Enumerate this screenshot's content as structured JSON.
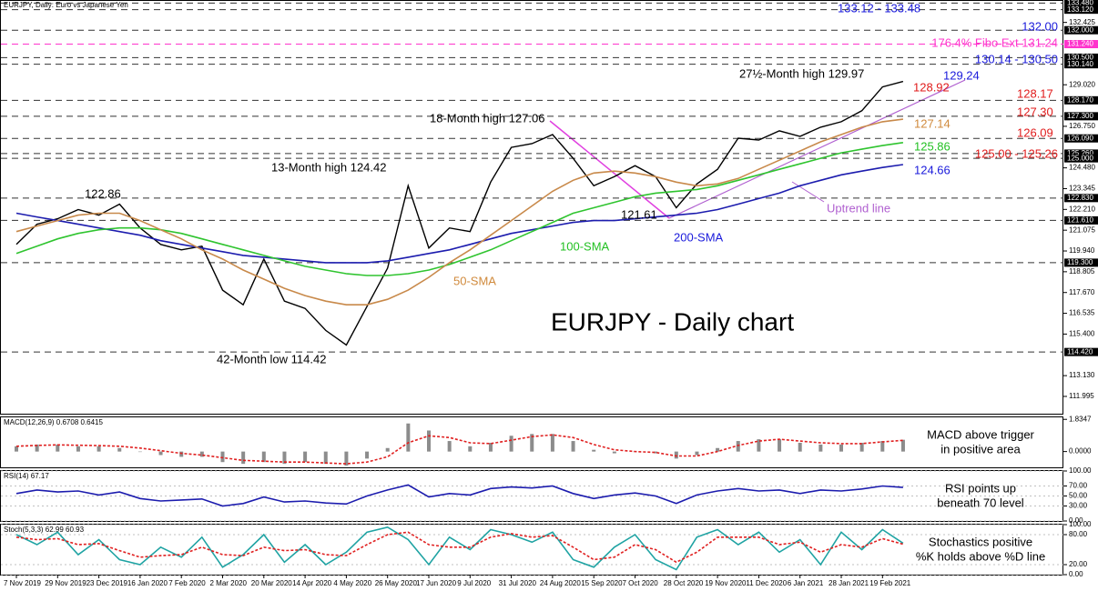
{
  "chart_data": [
    {
      "type": "line",
      "title": "EURJPY, Daily: Euro vs Japanese Yen",
      "categories": [
        "7 Nov 2019",
        null,
        "29 Nov 2019",
        null,
        "23 Dec 2019",
        null,
        "16 Jan 2020",
        null,
        "7 Feb 2020",
        null,
        "2 Mar 2020",
        null,
        "20 Mar 2020",
        null,
        "14 Apr 2020",
        null,
        "4 May 2020",
        null,
        "26 May 2020",
        null,
        "17 Jun 2020",
        null,
        "9 Jul 2020",
        null,
        "31 Jul 2020",
        null,
        "24 Aug 2020",
        null,
        "15 Sep 2020",
        null,
        "7 Oct 2020",
        null,
        "28 Oct 2020",
        null,
        "19 Nov 2020",
        null,
        "11 Dec 2020",
        null,
        "6 Jan 2021",
        null,
        "28 Jan 2021",
        null,
        "19 Feb 2021",
        null
      ],
      "series": [
        {
          "color": "#000000",
          "values": [
            120.3,
            121.4,
            121.7,
            122.2,
            121.9,
            122.5,
            121.2,
            120.3,
            120.0,
            120.2,
            117.8,
            117.0,
            119.5,
            117.2,
            116.8,
            115.6,
            114.8,
            116.9,
            119.0,
            123.5,
            120.1,
            121.2,
            121.0,
            123.7,
            125.6,
            125.8,
            126.3,
            125.0,
            123.5,
            124.0,
            124.6,
            124.0,
            122.3,
            123.6,
            124.4,
            126.1,
            126.0,
            126.5,
            126.2,
            126.7,
            127.0,
            127.6,
            128.9,
            129.2
          ]
        },
        {
          "color": "#1c1cae",
          "values": [
            122.0,
            121.8,
            121.6,
            121.4,
            121.2,
            121.0,
            120.8,
            120.5,
            120.3,
            120.1,
            119.9,
            119.7,
            119.6,
            119.5,
            119.4,
            119.3,
            119.3,
            119.3,
            119.4,
            119.6,
            119.8,
            120.0,
            120.3,
            120.6,
            120.9,
            121.1,
            121.3,
            121.5,
            121.6,
            121.6,
            121.7,
            121.8,
            121.9,
            122.0,
            122.2,
            122.5,
            122.8,
            123.1,
            123.5,
            123.8,
            124.1,
            124.3,
            124.5,
            124.66
          ]
        },
        {
          "color": "#2fc42f",
          "values": [
            119.8,
            120.2,
            120.6,
            120.9,
            121.1,
            121.2,
            121.2,
            121.1,
            120.9,
            120.6,
            120.3,
            120.0,
            119.7,
            119.4,
            119.1,
            118.9,
            118.7,
            118.6,
            118.6,
            118.7,
            118.9,
            119.2,
            119.6,
            120.0,
            120.5,
            121.0,
            121.5,
            122.0,
            122.3,
            122.6,
            122.9,
            123.1,
            123.2,
            123.3,
            123.5,
            123.8,
            124.1,
            124.4,
            124.7,
            125.0,
            125.3,
            125.5,
            125.7,
            125.86
          ]
        },
        {
          "color": "#c8894a",
          "values": [
            121.0,
            121.3,
            121.6,
            121.9,
            122.0,
            122.0,
            121.6,
            121.1,
            120.6,
            120.0,
            119.5,
            118.9,
            118.4,
            117.9,
            117.5,
            117.2,
            117.0,
            117.0,
            117.3,
            117.8,
            118.5,
            119.3,
            120.0,
            120.8,
            121.6,
            122.4,
            123.2,
            123.8,
            124.2,
            124.3,
            124.2,
            124.0,
            123.7,
            123.5,
            123.6,
            123.9,
            124.4,
            124.9,
            125.4,
            125.9,
            126.3,
            126.7,
            127.0,
            127.14
          ]
        }
      ],
      "ylim": [
        111.05,
        133.65
      ],
      "yticks": [
        111.995,
        {
          "value": 113.13,
          "label": "113.130"
        },
        {
          "value": 115.4,
          "label": "115.400"
        },
        116.535,
        {
          "value": 117.67,
          "label": "117.670"
        },
        118.805,
        {
          "value": 119.94,
          "label": "119.940"
        },
        121.075,
        {
          "value": 122.21,
          "label": "122.210"
        },
        123.345,
        {
          "value": 124.48,
          "label": "124.480"
        },
        {
          "value": 126.75,
          "label": "126.750"
        },
        {
          "value": 129.02,
          "label": "129.020"
        },
        132.425
      ],
      "levels": [
        {
          "value": 133.48,
          "label": "133.480",
          "color": "#000000"
        },
        {
          "value": 133.12,
          "label": "133.120",
          "color": "#000000"
        },
        {
          "value": 132,
          "label": "132.000",
          "color": "#000000"
        },
        {
          "value": 131.24,
          "label": "131.240",
          "color": "#ff33cc"
        },
        {
          "value": 130.5,
          "label": "130.500",
          "color": "#000000"
        },
        {
          "value": 130.14,
          "label": "130.140",
          "color": "#000000"
        },
        {
          "value": 128.17,
          "label": "128.170",
          "color": "#000000"
        },
        {
          "value": 127.3,
          "label": "127.300",
          "color": "#000000"
        },
        {
          "value": 126.09,
          "label": "126.090",
          "color": "#000000"
        },
        {
          "value": 125.26,
          "label": "125.260",
          "color": "#000000"
        },
        {
          "value": 125,
          "label": "125.000",
          "color": "#000000"
        },
        {
          "value": 122.83,
          "label": "122.830",
          "color": "#000000"
        },
        {
          "value": 121.61,
          "label": "121.610",
          "color": "#000000"
        },
        {
          "value": 119.3,
          "label": "119.300",
          "color": "#000000"
        },
        {
          "value": 114.42,
          "label": "114.420",
          "color": "#000000"
        }
      ],
      "annotations": [
        {
          "text": "133.12 - 133.48",
          "color": "#1a1adb"
        },
        {
          "text": "132.00",
          "color": "#1a1adb"
        },
        {
          "text": "176.4% Fibo Ext 131.24",
          "color": "#ff33cc"
        },
        {
          "text": "130.14 - 130.50",
          "color": "#1a1adb"
        },
        {
          "text": "27½-Month high 129.97",
          "color": "#000000"
        },
        {
          "text": "129.24",
          "color": "#1a1adb"
        },
        {
          "text": "128.92",
          "color": "#e01b1b"
        },
        {
          "text": "128.17",
          "color": "#e01b1b"
        },
        {
          "text": "127.30",
          "color": "#e01b1b"
        },
        {
          "text": "127.14",
          "color": "#d08a3c"
        },
        {
          "text": "126.09",
          "color": "#e01b1b"
        },
        {
          "text": "125.86",
          "color": "#22c022"
        },
        {
          "text": "125.00 - 125.26",
          "color": "#e01b1b"
        },
        {
          "text": "124.66",
          "color": "#1a1adb"
        },
        {
          "text": "18-Month high 127.06",
          "color": "#000000"
        },
        {
          "text": "13-Month high 124.42",
          "color": "#000000"
        },
        {
          "text": "122.86",
          "color": "#000000"
        },
        {
          "text": "121.61",
          "color": "#000000"
        },
        {
          "text": "Uptrend line",
          "color": "#b060d0"
        },
        {
          "text": "200-SMA",
          "color": "#1a1adb"
        },
        {
          "text": "100-SMA",
          "color": "#22c022"
        },
        {
          "text": "50-SMA",
          "color": "#d08a3c"
        },
        {
          "text": "42-Month low 114.42",
          "color": "#000000"
        }
      ],
      "headline": "EURJPY - Daily chart"
    },
    {
      "type": "bar",
      "title": "MACD(12,26,9) 0.6708 0.6415",
      "series": [
        {
          "mark": "bar",
          "color": "#8c8c8c",
          "values": [
            0.3,
            0.4,
            0.4,
            0.3,
            0.3,
            0.2,
            0.0,
            -0.2,
            -0.3,
            -0.3,
            -0.6,
            -0.7,
            -0.6,
            -0.7,
            -0.6,
            -0.7,
            -0.8,
            -0.4,
            0.2,
            1.6,
            1.2,
            0.6,
            0.3,
            0.5,
            0.9,
            1.0,
            1.0,
            0.6,
            0.1,
            -0.1,
            0.0,
            -0.1,
            -0.4,
            -0.2,
            0.2,
            0.6,
            0.7,
            0.7,
            0.5,
            0.4,
            0.4,
            0.5,
            0.6,
            0.6708
          ]
        },
        {
          "mark": "line",
          "dash": true,
          "color": "#e02020",
          "values": [
            0.3,
            0.35,
            0.38,
            0.36,
            0.34,
            0.3,
            0.2,
            0.05,
            -0.1,
            -0.2,
            -0.35,
            -0.5,
            -0.55,
            -0.6,
            -0.6,
            -0.65,
            -0.7,
            -0.6,
            -0.3,
            0.5,
            0.9,
            0.8,
            0.5,
            0.45,
            0.65,
            0.85,
            0.95,
            0.8,
            0.4,
            0.1,
            0.0,
            -0.05,
            -0.25,
            -0.25,
            0.0,
            0.35,
            0.6,
            0.7,
            0.6,
            0.5,
            0.45,
            0.45,
            0.55,
            0.6415
          ]
        }
      ],
      "ylim": [
        -0.9,
        1.95
      ],
      "yticks": [
        1.8347,
        {
          "value": 0,
          "label": "0.0000"
        }
      ],
      "annotation": [
        "MACD above trigger",
        "in positive area"
      ]
    },
    {
      "type": "line",
      "title": "RSI(14) 67.17",
      "series": [
        {
          "color": "#1c1cae",
          "values": [
            55,
            62,
            58,
            60,
            52,
            58,
            45,
            40,
            42,
            44,
            30,
            35,
            48,
            38,
            40,
            36,
            34,
            50,
            62,
            72,
            48,
            55,
            52,
            65,
            68,
            66,
            70,
            55,
            45,
            52,
            56,
            50,
            35,
            52,
            60,
            65,
            60,
            62,
            55,
            62,
            60,
            64,
            70,
            67.17
          ]
        }
      ],
      "ylim": [
        0,
        100
      ],
      "yticks": [
        {
          "value": 100,
          "label": "100.00"
        },
        {
          "value": 70,
          "label": "70.00"
        },
        {
          "value": 50,
          "label": "50.00"
        },
        {
          "value": 30,
          "label": "30.00"
        },
        {
          "value": 0,
          "label": "0.00"
        }
      ],
      "annotation": [
        "RSI points up",
        "beneath 70 level"
      ]
    },
    {
      "type": "line",
      "title": "Stoch(5,3,3) 62.99 60.93",
      "series": [
        {
          "color": "#1fa3a3",
          "values": [
            80,
            60,
            85,
            40,
            70,
            30,
            20,
            55,
            35,
            75,
            15,
            40,
            80,
            25,
            60,
            20,
            45,
            85,
            95,
            70,
            20,
            75,
            50,
            90,
            80,
            65,
            85,
            30,
            15,
            55,
            80,
            30,
            10,
            75,
            90,
            60,
            85,
            45,
            70,
            20,
            85,
            50,
            90,
            62.99
          ]
        },
        {
          "color": "#e02020",
          "dash": true,
          "values": [
            75,
            70,
            72,
            60,
            62,
            48,
            35,
            38,
            40,
            55,
            40,
            38,
            55,
            48,
            50,
            40,
            38,
            60,
            80,
            85,
            60,
            55,
            55,
            75,
            82,
            75,
            78,
            55,
            30,
            35,
            60,
            50,
            25,
            45,
            75,
            75,
            75,
            60,
            65,
            45,
            60,
            55,
            72,
            60.93
          ]
        }
      ],
      "ylim": [
        0,
        100
      ],
      "yticks": [
        {
          "value": 100,
          "label": "100.00"
        },
        {
          "value": 80,
          "label": "80.00"
        },
        {
          "value": 20,
          "label": "20.00"
        },
        {
          "value": 0,
          "label": "0.00"
        }
      ],
      "annotation": [
        "Stochastics positive",
        "%K holds above %D line"
      ]
    }
  ]
}
